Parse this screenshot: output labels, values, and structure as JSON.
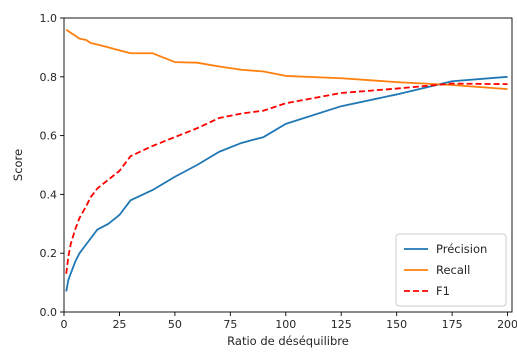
{
  "chart_data": {
    "type": "line",
    "title": "",
    "xlabel": "Ratio de déséquilibre",
    "ylabel": "Score",
    "xlim": [
      0,
      202
    ],
    "ylim": [
      0,
      1.0
    ],
    "xticks": [
      0,
      25,
      50,
      75,
      100,
      125,
      150,
      175,
      200
    ],
    "yticks": [
      0.0,
      0.2,
      0.4,
      0.6,
      0.8,
      1.0
    ],
    "xtick_labels": [
      "0",
      "25",
      "50",
      "75",
      "100",
      "125",
      "150",
      "175",
      "200"
    ],
    "ytick_labels": [
      "0.0",
      "0.2",
      "0.4",
      "0.6",
      "0.8",
      "1.0"
    ],
    "grid": false,
    "legend_position": "lower-right",
    "series": [
      {
        "name": "Précision",
        "color": "#1f77b4",
        "dash": "solid",
        "x": [
          1,
          2,
          3,
          5,
          7,
          10,
          12,
          15,
          20,
          25,
          30,
          40,
          50,
          60,
          70,
          80,
          90,
          100,
          125,
          150,
          175,
          200
        ],
        "y": [
          0.07,
          0.11,
          0.13,
          0.17,
          0.2,
          0.23,
          0.25,
          0.28,
          0.3,
          0.33,
          0.38,
          0.415,
          0.46,
          0.5,
          0.545,
          0.575,
          0.595,
          0.64,
          0.7,
          0.74,
          0.785,
          0.8
        ]
      },
      {
        "name": "Recall",
        "color": "#ff7f0e",
        "dash": "solid",
        "x": [
          1,
          2,
          3,
          5,
          7,
          10,
          12,
          15,
          20,
          25,
          30,
          40,
          50,
          60,
          70,
          80,
          90,
          100,
          125,
          150,
          175,
          200
        ],
        "y": [
          0.96,
          0.955,
          0.95,
          0.94,
          0.93,
          0.925,
          0.915,
          0.91,
          0.9,
          0.89,
          0.88,
          0.88,
          0.85,
          0.848,
          0.835,
          0.824,
          0.818,
          0.803,
          0.795,
          0.782,
          0.772,
          0.758
        ]
      },
      {
        "name": "F1",
        "color": "#ff0000",
        "dash": "dashed",
        "x": [
          1,
          2,
          3,
          5,
          7,
          10,
          12,
          15,
          20,
          25,
          30,
          40,
          50,
          60,
          70,
          80,
          90,
          100,
          125,
          150,
          175,
          200
        ],
        "y": [
          0.13,
          0.19,
          0.23,
          0.28,
          0.32,
          0.36,
          0.39,
          0.42,
          0.45,
          0.48,
          0.53,
          0.565,
          0.595,
          0.625,
          0.66,
          0.675,
          0.685,
          0.71,
          0.745,
          0.76,
          0.777,
          0.775
        ]
      }
    ]
  }
}
